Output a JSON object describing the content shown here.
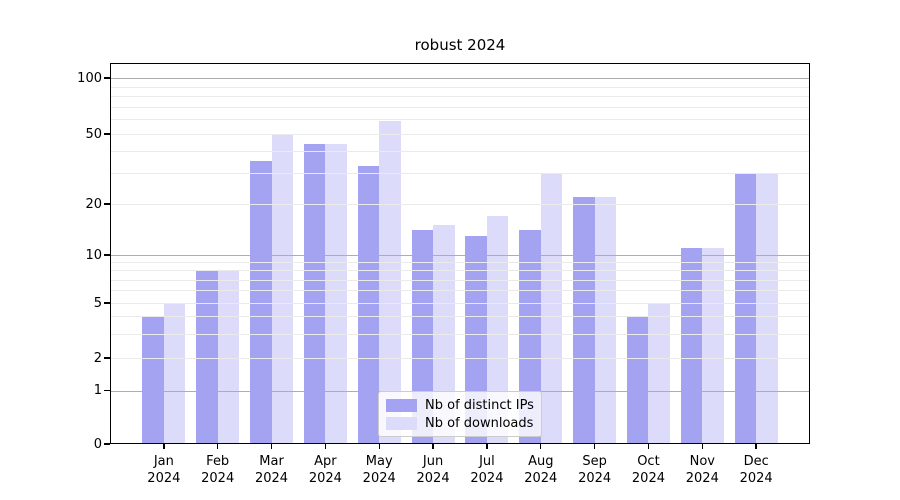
{
  "title": "robust 2024",
  "chart_data": {
    "type": "bar",
    "categories": [
      "Jan",
      "Feb",
      "Mar",
      "Apr",
      "May",
      "Jun",
      "Jul",
      "Aug",
      "Sep",
      "Oct",
      "Nov",
      "Dec"
    ],
    "year": "2024",
    "series": [
      {
        "name": "Nb of distinct IPs",
        "color": "#a3a3f1",
        "values": [
          4,
          8,
          35,
          44,
          33,
          14,
          13,
          14,
          22,
          4,
          11,
          30
        ]
      },
      {
        "name": "Nb of downloads",
        "color": "#dcdcfa",
        "values": [
          5,
          8,
          50,
          44,
          59,
          15,
          17,
          30,
          22,
          5,
          11,
          30
        ]
      }
    ],
    "yscale": "symlog",
    "yticks": [
      0,
      1,
      2,
      5,
      10,
      20,
      50,
      100
    ],
    "ytick_labels": [
      "0",
      "1",
      "2",
      "5",
      "10",
      "20",
      "50",
      "100"
    ],
    "minor_gridlines": [
      3,
      4,
      6,
      7,
      8,
      9,
      30,
      40,
      60,
      70,
      80,
      90
    ],
    "major_dark_gridlines": [
      1,
      10,
      100
    ],
    "ylim": [
      0,
      110
    ],
    "grid": "horizontal",
    "legend_position": "lower center",
    "colors": {
      "bar_dark": "#a3a3f1",
      "bar_light": "#dcdcfa",
      "grid_major": "#adadad",
      "grid_minor": "#eaeaea",
      "spine": "#000000",
      "background": "#ffffff"
    }
  }
}
